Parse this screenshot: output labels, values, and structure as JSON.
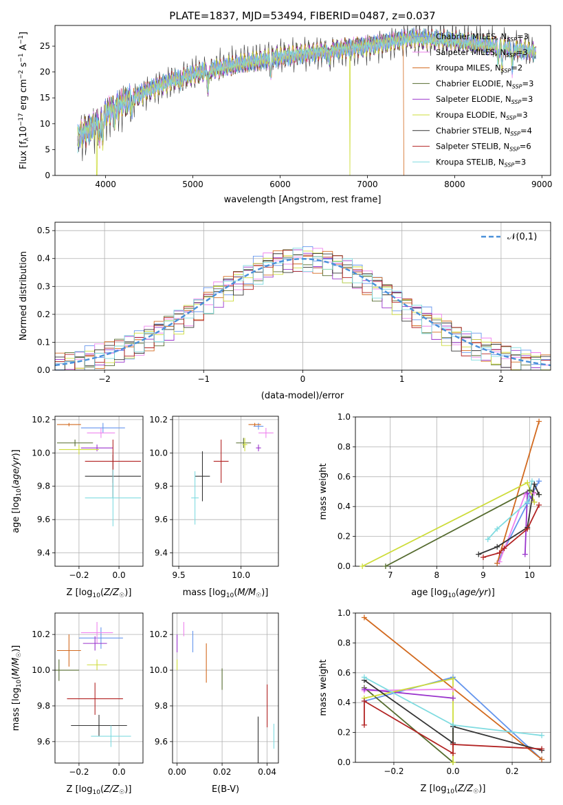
{
  "figure": {
    "title": "PLATE=1837, MJD=53494, FIBERID=0487, z=0.037"
  },
  "models": [
    {
      "name": "Chabrier MILES, N",
      "sub": "SSP",
      "suffix": "=3",
      "color": "#6495ed"
    },
    {
      "name": "Salpeter MILES, N",
      "sub": "SSP",
      "suffix": "=3",
      "color": "#ee82ee"
    },
    {
      "name": "Kroupa MILES, N",
      "sub": "SSP",
      "suffix": "=2",
      "color": "#d2691e"
    },
    {
      "name": "Chabrier ELODIE, N",
      "sub": "SSP",
      "suffix": "=3",
      "color": "#556b2f"
    },
    {
      "name": "Salpeter ELODIE, N",
      "sub": "SSP",
      "suffix": "=3",
      "color": "#9932cc"
    },
    {
      "name": "Kroupa ELODIE, N",
      "sub": "SSP",
      "suffix": "=3",
      "color": "#cddc39"
    },
    {
      "name": "Chabrier STELIB, N",
      "sub": "SSP",
      "suffix": "=4",
      "color": "#333333"
    },
    {
      "name": "Salpeter STELIB, N",
      "sub": "SSP",
      "suffix": "=6",
      "color": "#b22222"
    },
    {
      "name": "Kroupa STELIB, N",
      "sub": "SSP",
      "suffix": "=3",
      "color": "#7fdbe0"
    }
  ],
  "chart_data": [
    {
      "id": "spectrum",
      "type": "line",
      "xlabel": "wavelength [Angstrom, rest frame]",
      "ylabel": "Flux [f_λ10^-17 erg cm^-2 s^-1 A^-1]",
      "xlim": [
        3420,
        9100
      ],
      "ylim": [
        0,
        29
      ],
      "xticks": [
        4000,
        5000,
        6000,
        7000,
        8000,
        9000
      ],
      "yticks": [
        0,
        5,
        10,
        15,
        20,
        25
      ],
      "grid": false,
      "legend": "top-right",
      "continuum": [
        [
          3680,
          7.5
        ],
        [
          3900,
          10
        ],
        [
          4000,
          12
        ],
        [
          4200,
          14
        ],
        [
          4500,
          16.5
        ],
        [
          4800,
          18.5
        ],
        [
          5100,
          20
        ],
        [
          5500,
          21.5
        ],
        [
          6000,
          23
        ],
        [
          6500,
          24
        ],
        [
          7000,
          25
        ],
        [
          7500,
          26.5
        ],
        [
          8000,
          26
        ],
        [
          8500,
          25
        ],
        [
          8900,
          24
        ]
      ],
      "dips": [
        [
          3933,
          4
        ],
        [
          3968,
          4
        ],
        [
          4102,
          2
        ],
        [
          4304,
          3
        ],
        [
          4861,
          2
        ],
        [
          5175,
          4
        ],
        [
          5893,
          3
        ],
        [
          6563,
          2
        ],
        [
          8498,
          3
        ],
        [
          8542,
          4
        ],
        [
          8662,
          4
        ]
      ],
      "dropouts": [
        [
          3900,
          "Kroupa ELODIE"
        ],
        [
          6800,
          "Kroupa ELODIE"
        ],
        [
          7420,
          "Kroupa MILES"
        ]
      ]
    },
    {
      "id": "residuals",
      "type": "histogram",
      "xlabel": "(data-model)/error",
      "ylabel": "Normed distribution",
      "xlim": [
        -2.5,
        2.5
      ],
      "ylim": [
        0,
        0.53
      ],
      "xticks": [
        -2,
        -1,
        0,
        1,
        2
      ],
      "yticks": [
        0,
        0.1,
        0.2,
        0.3,
        0.4,
        0.5
      ],
      "bin_width": 0.1,
      "grid": true,
      "legend": "top-right",
      "reference": {
        "label": "𝒩(0,1)",
        "mean": 0,
        "sigma": 1,
        "color": "#4a90d9"
      }
    },
    {
      "id": "age-vs-Z",
      "type": "errorbar",
      "xlabel": "Z [log10(Z/Z☉)]",
      "ylabel": "age [log10(age/yr)]",
      "xlim": [
        -0.32,
        0.12
      ],
      "ylim": [
        9.32,
        10.22
      ],
      "xticks": [
        -0.2,
        0.0
      ],
      "yticks": [
        9.4,
        9.6,
        9.8,
        10.0,
        10.2
      ],
      "grid": true,
      "points": [
        {
          "model": 0,
          "x": -0.08,
          "xerr": 0.11,
          "y": 10.15,
          "yerr": 0.03
        },
        {
          "model": 1,
          "x": -0.09,
          "xerr": 0.07,
          "y": 10.12,
          "yerr": 0.03
        },
        {
          "model": 2,
          "x": -0.25,
          "xerr": 0.06,
          "y": 10.17,
          "yerr": 0.01
        },
        {
          "model": 3,
          "x": -0.22,
          "xerr": 0.09,
          "y": 10.06,
          "yerr": 0.02
        },
        {
          "model": 4,
          "x": -0.11,
          "xerr": 0.08,
          "y": 10.03,
          "yerr": 0.02
        },
        {
          "model": 5,
          "x": -0.2,
          "xerr": 0.1,
          "y": 10.02,
          "yerr": 0.03
        },
        {
          "model": 6,
          "x": -0.03,
          "xerr": 0.14,
          "y": 9.86,
          "yerr": 0.13
        },
        {
          "model": 7,
          "x": -0.03,
          "xerr": 0.14,
          "y": 9.95,
          "yerr": 0.13
        },
        {
          "model": 8,
          "x": -0.03,
          "xerr": 0.14,
          "y": 9.73,
          "yerr": 0.17
        }
      ]
    },
    {
      "id": "age-vs-mass",
      "type": "errorbar",
      "xlabel": "mass [log10(M/M☉)]",
      "ylabel": "",
      "xlim": [
        9.45,
        10.3
      ],
      "ylim": [
        9.32,
        10.22
      ],
      "xticks": [
        9.5,
        10.0
      ],
      "yticks": [
        9.4,
        9.6,
        9.8,
        10.0,
        10.2
      ],
      "grid": true,
      "points": [
        {
          "model": 0,
          "x": 10.14,
          "xerr": 0.04,
          "y": 10.16,
          "yerr": 0.02
        },
        {
          "model": 1,
          "x": 10.2,
          "xerr": 0.06,
          "y": 10.12,
          "yerr": 0.03
        },
        {
          "model": 2,
          "x": 10.11,
          "xerr": 0.05,
          "y": 10.17,
          "yerr": 0.01
        },
        {
          "model": 3,
          "x": 10.02,
          "xerr": 0.06,
          "y": 10.06,
          "yerr": 0.03
        },
        {
          "model": 4,
          "x": 10.14,
          "xerr": 0.02,
          "y": 10.03,
          "yerr": 0.02
        },
        {
          "model": 5,
          "x": 10.03,
          "xerr": 0.02,
          "y": 10.05,
          "yerr": 0.04
        },
        {
          "model": 6,
          "x": 9.69,
          "xerr": 0.06,
          "y": 9.86,
          "yerr": 0.15
        },
        {
          "model": 7,
          "x": 9.84,
          "xerr": 0.06,
          "y": 9.95,
          "yerr": 0.13
        },
        {
          "model": 8,
          "x": 9.63,
          "xerr": 0.03,
          "y": 9.73,
          "yerr": 0.16
        }
      ]
    },
    {
      "id": "mass-weight-vs-age",
      "type": "line",
      "xlabel": "age [log10(age/yr)]",
      "ylabel": "mass weight",
      "xlim": [
        6.25,
        10.45
      ],
      "ylim": [
        0,
        1.0
      ],
      "xticks": [
        7,
        8,
        9,
        10
      ],
      "yticks": [
        0.0,
        0.2,
        0.4,
        0.6,
        0.8,
        1.0
      ],
      "grid": true,
      "series": [
        {
          "model": 0,
          "x": [
            9.3,
            9.95,
            10.2
          ],
          "y": [
            0.02,
            0.42,
            0.57
          ]
        },
        {
          "model": 1,
          "x": [
            9.35,
            9.9,
            10.1
          ],
          "y": [
            0.03,
            0.48,
            0.49
          ]
        },
        {
          "model": 2,
          "x": [
            9.3,
            10.2
          ],
          "y": [
            0.02,
            0.97
          ]
        },
        {
          "model": 3,
          "x": [
            6.9,
            10.0,
            10.2
          ],
          "y": [
            0.0,
            0.51,
            0.48
          ]
        },
        {
          "model": 4,
          "x": [
            9.9,
            9.95,
            10.1
          ],
          "y": [
            0.08,
            0.49,
            0.43
          ]
        },
        {
          "model": 5,
          "x": [
            6.4,
            9.95,
            10.1
          ],
          "y": [
            0.0,
            0.56,
            0.43
          ]
        },
        {
          "model": 6,
          "x": [
            8.9,
            9.3,
            9.95,
            10.1,
            10.2
          ],
          "y": [
            0.08,
            0.13,
            0.26,
            0.55,
            0.48
          ]
        },
        {
          "model": 7,
          "x": [
            9.0,
            9.35,
            9.45,
            9.95,
            10.2
          ],
          "y": [
            0.06,
            0.09,
            0.12,
            0.25,
            0.41
          ]
        },
        {
          "model": 8,
          "x": [
            9.1,
            9.3,
            9.95,
            10.05
          ],
          "y": [
            0.18,
            0.25,
            0.43,
            0.57
          ]
        }
      ]
    },
    {
      "id": "mass-vs-Z",
      "type": "errorbar",
      "xlabel": "Z [log10(Z/Z☉)]",
      "ylabel": "mass [log10(M/M☉)]",
      "xlim": [
        -0.32,
        0.12
      ],
      "ylim": [
        9.48,
        10.32
      ],
      "xticks": [
        -0.2,
        0.0
      ],
      "yticks": [
        9.6,
        9.8,
        10.0,
        10.2
      ],
      "grid": true,
      "points": [
        {
          "model": 0,
          "x": -0.09,
          "xerr": 0.11,
          "y": 10.18,
          "yerr": 0.06
        },
        {
          "model": 1,
          "x": -0.11,
          "xerr": 0.08,
          "y": 10.21,
          "yerr": 0.06
        },
        {
          "model": 2,
          "x": -0.25,
          "xerr": 0.06,
          "y": 10.11,
          "yerr": 0.09
        },
        {
          "model": 3,
          "x": -0.3,
          "xerr": 0.1,
          "y": 10.0,
          "yerr": 0.06
        },
        {
          "model": 4,
          "x": -0.12,
          "xerr": 0.06,
          "y": 10.15,
          "yerr": 0.04
        },
        {
          "model": 5,
          "x": -0.11,
          "xerr": 0.05,
          "y": 10.03,
          "yerr": 0.03
        },
        {
          "model": 6,
          "x": -0.1,
          "xerr": 0.14,
          "y": 9.69,
          "yerr": 0.06
        },
        {
          "model": 7,
          "x": -0.12,
          "xerr": 0.14,
          "y": 9.84,
          "yerr": 0.09
        },
        {
          "model": 8,
          "x": -0.04,
          "xerr": 0.1,
          "y": 9.63,
          "yerr": 0.06
        }
      ]
    },
    {
      "id": "mass-vs-EBV",
      "type": "errorbar",
      "xlabel": "E(B-V)",
      "ylabel": "",
      "xlim": [
        -0.002,
        0.045
      ],
      "ylim": [
        9.48,
        10.32
      ],
      "xticks": [
        0.0,
        0.02,
        0.04
      ],
      "yticks": [
        9.6,
        9.8,
        10.0,
        10.2
      ],
      "grid": true,
      "points": [
        {
          "model": 0,
          "x": 0.007,
          "xerr": 0,
          "y": 10.16,
          "yerr": 0.06
        },
        {
          "model": 1,
          "x": 0.003,
          "xerr": 0,
          "y": 10.23,
          "yerr": 0.04
        },
        {
          "model": 2,
          "x": 0.013,
          "xerr": 0,
          "y": 10.04,
          "yerr": 0.11
        },
        {
          "model": 3,
          "x": 0.02,
          "xerr": 0,
          "y": 9.95,
          "yerr": 0.06
        },
        {
          "model": 4,
          "x": 0.0,
          "xerr": 0,
          "y": 10.15,
          "yerr": 0.05
        },
        {
          "model": 5,
          "x": 0.0,
          "xerr": 0,
          "y": 10.03,
          "yerr": 0.03
        },
        {
          "model": 6,
          "x": 0.036,
          "xerr": 0,
          "y": 9.61,
          "yerr": 0.13
        },
        {
          "model": 7,
          "x": 0.04,
          "xerr": 0,
          "y": 9.8,
          "yerr": 0.12
        },
        {
          "model": 8,
          "x": 0.043,
          "xerr": 0,
          "y": 9.63,
          "yerr": 0.07
        }
      ]
    },
    {
      "id": "mass-weight-vs-Z",
      "type": "line",
      "xlabel": "Z [log10(Z/Z☉)]",
      "ylabel": "mass weight",
      "xlim": [
        -0.33,
        0.33
      ],
      "ylim": [
        0,
        1.0
      ],
      "xticks": [
        -0.2,
        0.0,
        0.2
      ],
      "yticks": [
        0.0,
        0.2,
        0.4,
        0.6,
        0.8,
        1.0
      ],
      "grid": true,
      "series": [
        {
          "model": 0,
          "x": [
            -0.3,
            0.0,
            0.3
          ],
          "y": [
            0.41,
            0.57,
            0.02
          ]
        },
        {
          "model": 1,
          "x": [
            -0.3,
            0.0
          ],
          "y": [
            0.48,
            0.49
          ]
        },
        {
          "model": 2,
          "x": [
            -0.3,
            0.3
          ],
          "y": [
            0.97,
            0.02
          ]
        },
        {
          "model": 3,
          "x": [
            -0.3,
            0.0
          ],
          "y": [
            0.5,
            0.0
          ]
        },
        {
          "model": 4,
          "x": [
            -0.3,
            0.0
          ],
          "y": [
            0.49,
            0.43
          ]
        },
        {
          "model": 5,
          "x": [
            -0.3,
            0.0,
            0.0
          ],
          "y": [
            0.43,
            0.56,
            0.0
          ]
        },
        {
          "model": 6,
          "x": [
            -0.3,
            0.0,
            0.0,
            0.3
          ],
          "y": [
            0.55,
            0.13,
            0.24,
            0.08
          ]
        },
        {
          "model": 7,
          "x": [
            -0.3,
            -0.3,
            0.0,
            0.0,
            0.3
          ],
          "y": [
            0.25,
            0.41,
            0.06,
            0.12,
            0.09
          ]
        },
        {
          "model": 8,
          "x": [
            -0.3,
            0.0,
            0.3
          ],
          "y": [
            0.57,
            0.25,
            0.18
          ]
        }
      ]
    }
  ]
}
